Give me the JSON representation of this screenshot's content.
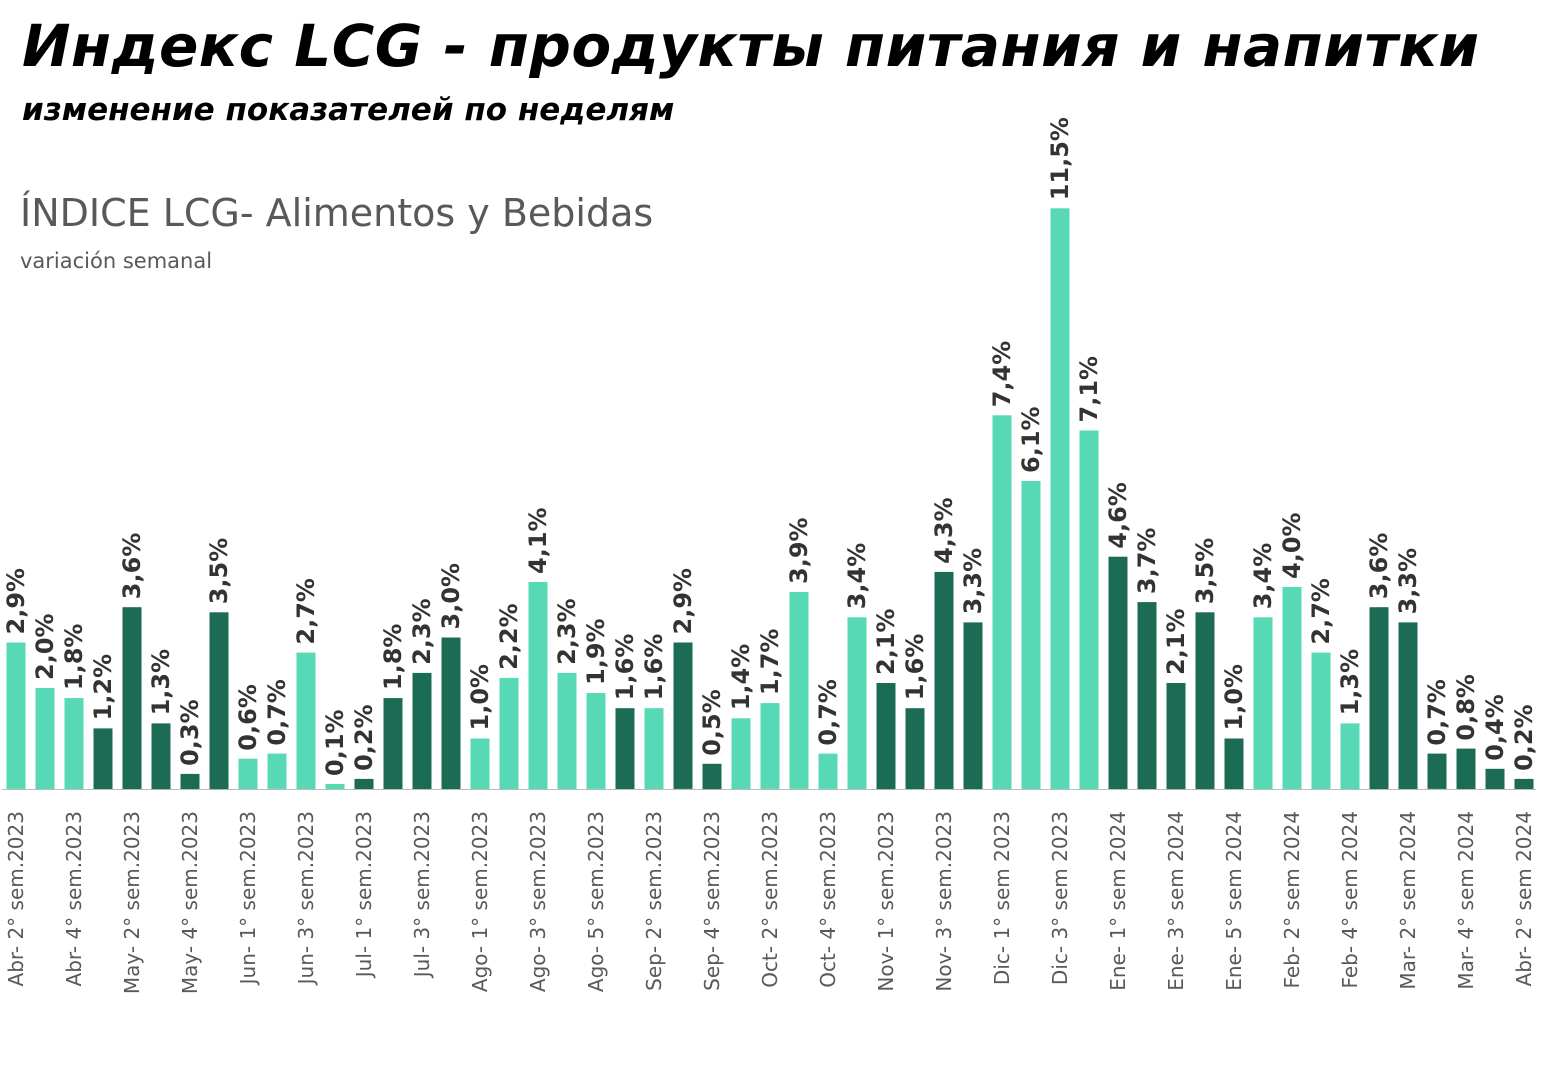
{
  "header": {
    "title_ru": "Индекс LCG - продукты питания и напитки",
    "subtitle_ru": "изменение показателей по неделям"
  },
  "chart_data": {
    "type": "bar",
    "title": "ÍNDICE LCG- Alimentos y Bebidas",
    "subtitle": "variación semanal",
    "ylim": [
      0,
      12
    ],
    "grid": false,
    "legend": "none",
    "colors": {
      "light": "#56D9B4",
      "dark": "#1B6B55",
      "label": "#333333",
      "axis": "#BBBBBB"
    },
    "label_every_other": true,
    "values": [
      2.9,
      2.0,
      1.8,
      1.2,
      3.6,
      1.3,
      0.3,
      3.5,
      0.6,
      0.7,
      2.7,
      0.1,
      0.2,
      1.8,
      2.3,
      3.0,
      1.0,
      2.2,
      4.1,
      2.3,
      1.9,
      1.6,
      1.6,
      2.9,
      0.5,
      1.4,
      1.7,
      3.9,
      0.7,
      3.4,
      2.1,
      1.6,
      4.3,
      3.3,
      7.4,
      6.1,
      11.5,
      7.1,
      4.6,
      3.7,
      2.1,
      3.5,
      1.0,
      3.4,
      4.0,
      2.7,
      1.3,
      3.6,
      3.3,
      0.7,
      0.8,
      0.4,
      0.2
    ],
    "data_labels": [
      "2,9%",
      "2,0%",
      "1,8%",
      "1,2%",
      "3,6%",
      "1,3%",
      "0,3%",
      "3,5%",
      "0,6%",
      "0,7%",
      "2,7%",
      "0,1%",
      "0,2%",
      "1,8%",
      "2,3%",
      "3,0%",
      "1,0%",
      "2,2%",
      "4,1%",
      "2,3%",
      "1,9%",
      "1,6%",
      "1,6%",
      "2,9%",
      "0,5%",
      "1,4%",
      "1,7%",
      "3,9%",
      "0,7%",
      "3,4%",
      "2,1%",
      "1,6%",
      "4,3%",
      "3,3%",
      "7,4%",
      "6,1%",
      "11,5%",
      "7,1%",
      "4,6%",
      "3,7%",
      "2,1%",
      "3,5%",
      "1,0%",
      "3,4%",
      "4,0%",
      "2,7%",
      "1,3%",
      "3,6%",
      "3,3%",
      "0,7%",
      "0,8%",
      "0,4%",
      "0,2%"
    ],
    "tones": [
      "light",
      "light",
      "light",
      "dark",
      "dark",
      "dark",
      "dark",
      "dark",
      "light",
      "light",
      "light",
      "light",
      "dark",
      "dark",
      "dark",
      "dark",
      "light",
      "light",
      "light",
      "light",
      "light",
      "dark",
      "light",
      "dark",
      "dark",
      "light",
      "light",
      "light",
      "light",
      "light",
      "dark",
      "dark",
      "dark",
      "dark",
      "light",
      "light",
      "light",
      "light",
      "dark",
      "dark",
      "dark",
      "dark",
      "dark",
      "light",
      "light",
      "light",
      "light",
      "dark",
      "dark",
      "dark",
      "dark",
      "dark",
      "dark"
    ],
    "tick_labels": [
      "Abr- 2° sem.2023",
      "Abr- 4° sem.2023",
      "May- 2° sem.2023",
      "May- 4° sem.2023",
      "Jun- 1° sem.2023",
      "Jun- 3° sem.2023",
      "Jul- 1° sem.2023",
      "Jul- 3° sem.2023",
      "Ago- 1° sem.2023",
      "Ago- 3° sem.2023",
      "Ago- 5° sem.2023",
      "Sep- 2° sem.2023",
      "Sep- 4° sem.2023",
      "Oct- 2° sem.2023",
      "Oct- 4° sem.2023",
      "Nov- 1° sem.2023",
      "Nov- 3° sem.2023",
      "Dic- 1° sem 2023",
      "Dic- 3° sem 2023",
      "Ene- 1° sem 2024",
      "Ene- 3° sem 2024",
      "Ene- 5° sem 2024",
      "Feb- 2° sem 2024",
      "Feb- 4° sem 2024",
      "Mar- 2° sem 2024",
      "Mar- 4° sem 2024",
      "Abr- 2° sem 2024"
    ]
  }
}
